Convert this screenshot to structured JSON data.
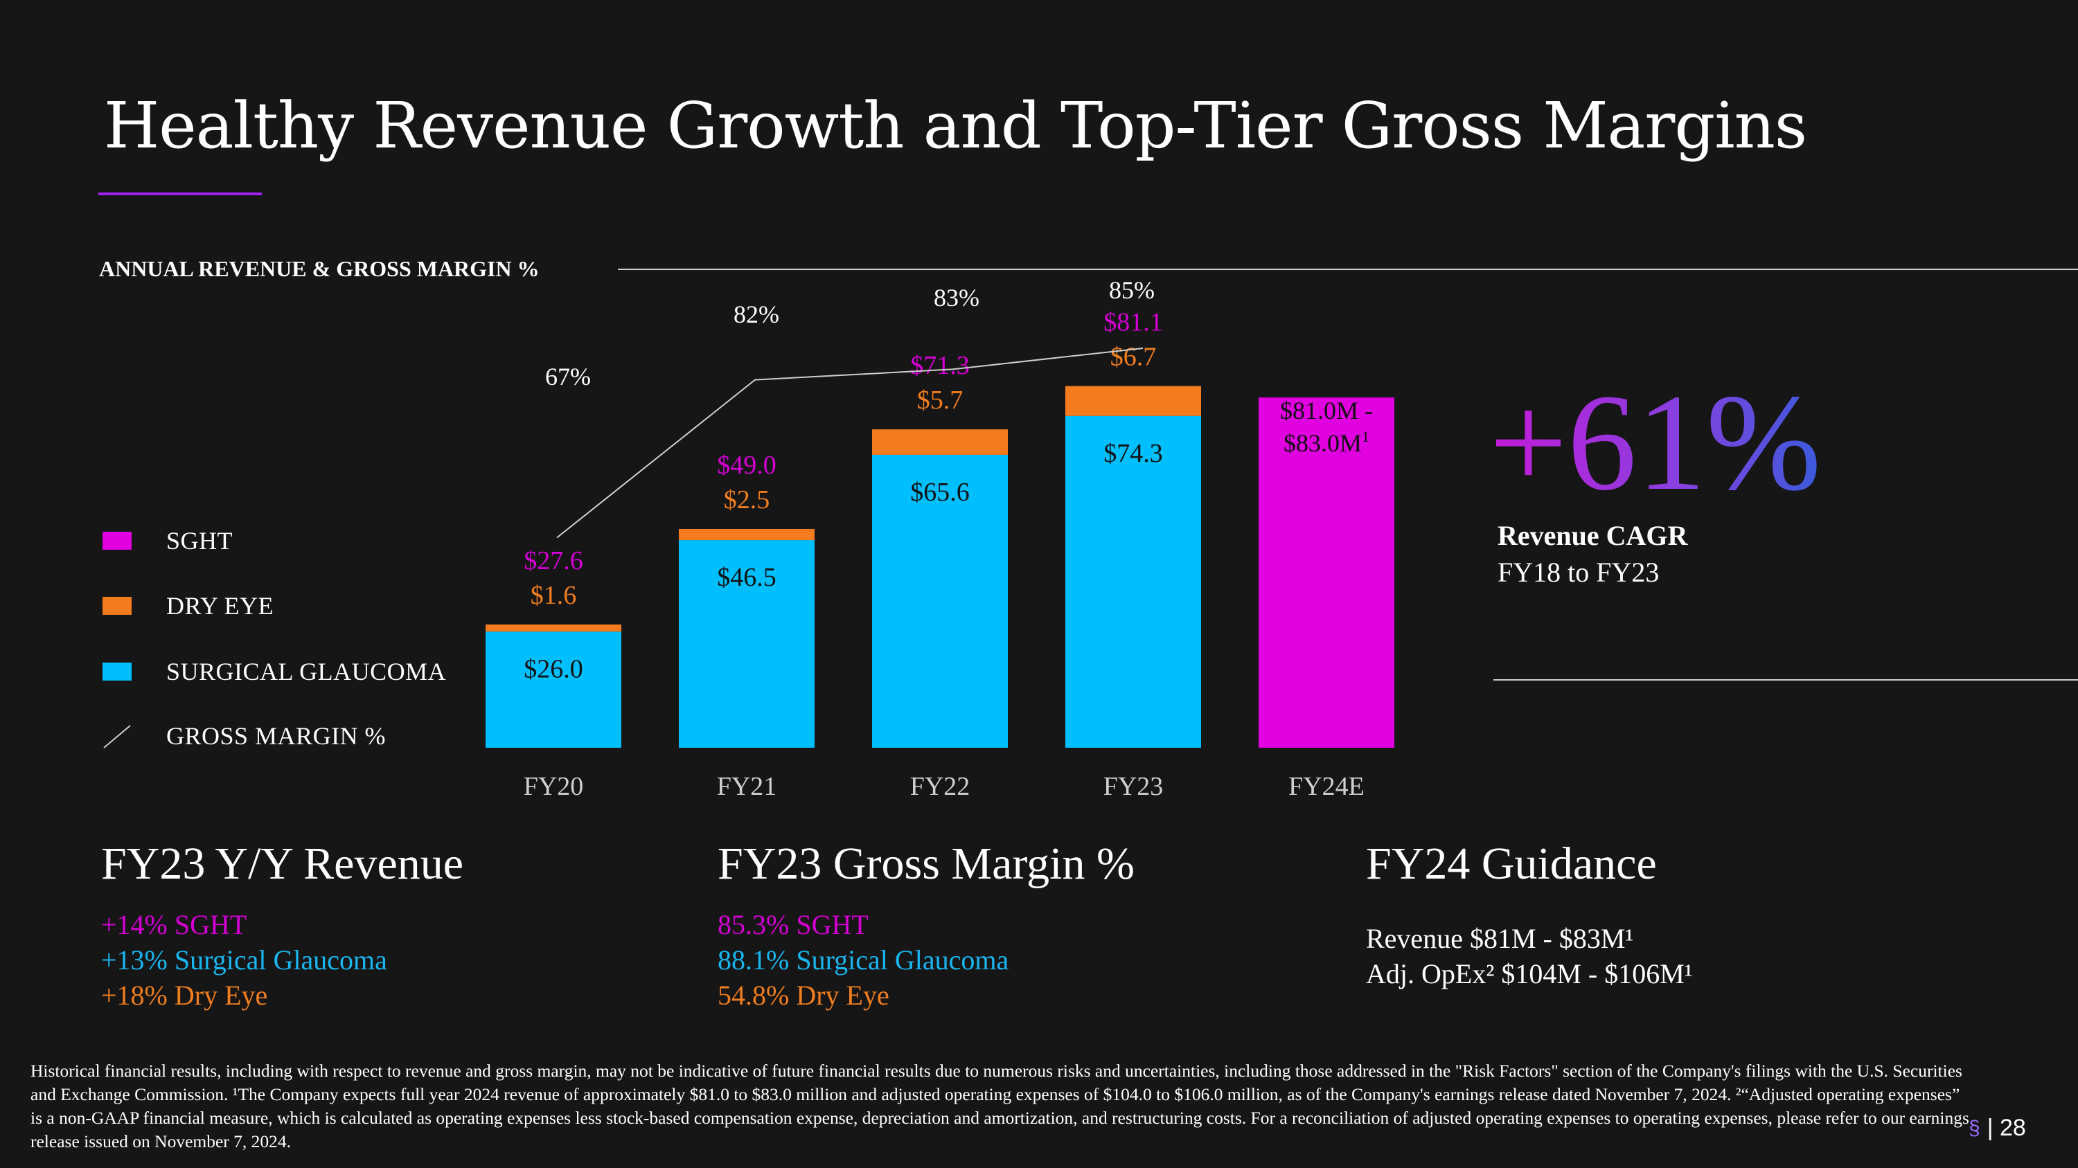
{
  "title": "Healthy Revenue Growth and Top-Tier Gross Margins",
  "section_label": "ANNUAL REVENUE & GROSS MARGIN %",
  "legend": [
    {
      "label": "SGHT",
      "color": "#e000e0"
    },
    {
      "label": "DRY EYE",
      "color": "#f47b1e"
    },
    {
      "label": "SURGICAL GLAUCOMA",
      "color": "#00bfff"
    },
    {
      "label": "GROSS MARGIN %",
      "color": "#cfcfcf"
    }
  ],
  "chart_data": {
    "type": "bar",
    "title": "ANNUAL REVENUE & GROSS MARGIN %",
    "categories": [
      "FY20",
      "FY21",
      "FY22",
      "FY23",
      "FY24E"
    ],
    "series": [
      {
        "name": "SURGICAL GLAUCOMA",
        "color": "#00bfff",
        "values": [
          26.0,
          46.5,
          65.6,
          74.3,
          null
        ],
        "labels": [
          "$26.0",
          "$46.5",
          "$65.6",
          "$74.3",
          ""
        ]
      },
      {
        "name": "DRY EYE",
        "color": "#f47b1e",
        "values": [
          1.6,
          2.5,
          5.7,
          6.7,
          null
        ],
        "labels": [
          "$1.6",
          "$2.5",
          "$5.7",
          "$6.7",
          ""
        ]
      },
      {
        "name": "SGHT",
        "color": "#e000e0",
        "values": [
          27.6,
          49.0,
          71.3,
          81.1,
          82.0
        ],
        "labels": [
          "$27.6",
          "$49.0",
          "$71.3",
          "$81.1",
          ""
        ]
      }
    ],
    "guidance_label_lines": [
      "$81.0M -",
      "$83.0M"
    ],
    "guidance_superscript": "1",
    "gross_margin": {
      "name": "GROSS MARGIN %",
      "values": [
        67,
        82,
        83,
        85
      ],
      "labels": [
        "67%",
        "82%",
        "83%",
        "85%"
      ]
    },
    "ylim": [
      0,
      100
    ],
    "xlabel": "",
    "ylabel": ""
  },
  "cagr": {
    "value": "+61%",
    "label": "Revenue CAGR",
    "sublabel": "FY18 to FY23"
  },
  "panels": [
    {
      "title": "FY23 Y/Y Revenue",
      "lines": [
        {
          "text": "+14% SGHT",
          "cls": "c-sght"
        },
        {
          "text": "+13% Surgical Glaucoma",
          "cls": "c-glau"
        },
        {
          "text": "+18% Dry Eye",
          "cls": "c-dry"
        }
      ]
    },
    {
      "title": "FY23 Gross Margin %",
      "lines": [
        {
          "text": "85.3% SGHT",
          "cls": "c-sght"
        },
        {
          "text": "88.1% Surgical Glaucoma",
          "cls": "c-glau"
        },
        {
          "text": "54.8% Dry Eye",
          "cls": "c-dry"
        }
      ]
    },
    {
      "title": "FY24 Guidance",
      "lines": [
        {
          "text": "Revenue $81M - $83M¹",
          "cls": "c-white"
        },
        {
          "text": "Adj. OpEx² $104M - $106M¹",
          "cls": "c-white"
        }
      ]
    }
  ],
  "footnote": "Historical financial results, including with respect to revenue and gross margin, may not be indicative of future financial results due to numerous risks and uncertainties, including those addressed in the \"Risk Factors\" section of the Company's filings with the U.S. Securities and Exchange Commission. ¹The Company expects full year 2024 revenue of approximately $81.0 to $83.0 million and adjusted operating expenses of $104.0 to $106.0 million, as of the Company's earnings release dated November 7, 2024. ²“Adjusted operating expenses” is a non-GAAP financial measure, which is calculated as operating expenses less stock-based compensation expense, depreciation and amortization, and restructuring costs. For a reconciliation of adjusted operating expenses to operating expenses, please refer to our earnings release issued on November 7, 2024.",
  "page_number": "| 28",
  "logo_icon": "sight-logo-icon"
}
